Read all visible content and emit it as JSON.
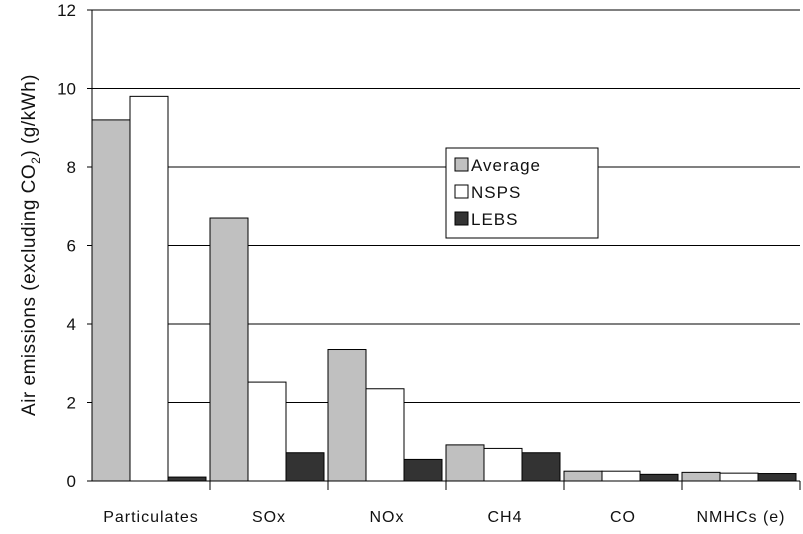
{
  "chart_data": {
    "type": "bar",
    "categories": [
      "Particulates",
      "SOx",
      "NOx",
      "CH4",
      "CO",
      "NMHCs (e)"
    ],
    "series": [
      {
        "name": "Average",
        "color": "#c0c0c0",
        "values": [
          9.2,
          6.7,
          3.35,
          0.92,
          0.25,
          0.22
        ]
      },
      {
        "name": "NSPS",
        "color": "#ffffff",
        "values": [
          9.8,
          2.52,
          2.35,
          0.83,
          0.25,
          0.2
        ]
      },
      {
        "name": "LEBS",
        "color": "#333333",
        "values": [
          0.1,
          0.72,
          0.55,
          0.72,
          0.17,
          0.19
        ]
      }
    ],
    "ylabel_main": "Air emissions (excluding CO",
    "ylabel_sub": "2",
    "ylabel_end": ") (g/kWh)",
    "ylim": [
      0,
      12
    ],
    "yticks": [
      "0",
      "2",
      "4",
      "6",
      "8",
      "10",
      "12"
    ],
    "grid": true,
    "legend_position": "center-right"
  }
}
